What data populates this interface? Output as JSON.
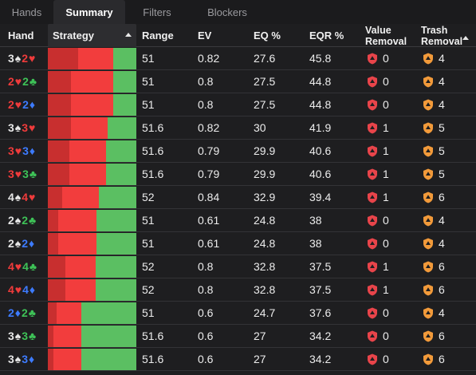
{
  "tabs": [
    {
      "label": "Hands",
      "active": false
    },
    {
      "label": "Summary",
      "active": true
    },
    {
      "label": "Filters",
      "active": false
    },
    {
      "label": "Blockers",
      "active": false
    }
  ],
  "columns": {
    "hand": "Hand",
    "strategy": "Strategy",
    "range": "Range",
    "ev": "EV",
    "eq": "EQ %",
    "eqr": "EQR %",
    "value_removal_line1": "Value",
    "value_removal_line2": "Removal",
    "trash_removal_line1": "Trash",
    "trash_removal_line2": "Removal"
  },
  "colors": {
    "spade": "#e6e6e6",
    "heart": "#ef3b3b",
    "diamond": "#3d7bff",
    "club": "#3ec257",
    "strategy_dark": "#c82f2f",
    "strategy_red": "#f23d3d",
    "strategy_green": "#5bbf62",
    "value_shield": "#e8444a",
    "trash_shield": "#f29a3a"
  },
  "rows": [
    {
      "hand": [
        [
          "3",
          "s"
        ],
        [
          "2",
          "h"
        ]
      ],
      "strategy": [
        0.34,
        0.4,
        0.26
      ],
      "range": "51",
      "ev": "0.82",
      "eq": "27.6",
      "eqr": "45.8",
      "value_removal": "0",
      "trash_removal": "4"
    },
    {
      "hand": [
        [
          "2",
          "h"
        ],
        [
          "2",
          "cl"
        ]
      ],
      "strategy": [
        0.26,
        0.48,
        0.26
      ],
      "range": "51",
      "ev": "0.8",
      "eq": "27.5",
      "eqr": "44.8",
      "value_removal": "0",
      "trash_removal": "4"
    },
    {
      "hand": [
        [
          "2",
          "h"
        ],
        [
          "2",
          "d"
        ]
      ],
      "strategy": [
        0.26,
        0.48,
        0.26
      ],
      "range": "51",
      "ev": "0.8",
      "eq": "27.5",
      "eqr": "44.8",
      "value_removal": "0",
      "trash_removal": "4"
    },
    {
      "hand": [
        [
          "3",
          "s"
        ],
        [
          "3",
          "h"
        ]
      ],
      "strategy": [
        0.26,
        0.42,
        0.32
      ],
      "range": "51.6",
      "ev": "0.82",
      "eq": "30",
      "eqr": "41.9",
      "value_removal": "1",
      "trash_removal": "5"
    },
    {
      "hand": [
        [
          "3",
          "h"
        ],
        [
          "3",
          "d"
        ]
      ],
      "strategy": [
        0.24,
        0.42,
        0.34
      ],
      "range": "51.6",
      "ev": "0.79",
      "eq": "29.9",
      "eqr": "40.6",
      "value_removal": "1",
      "trash_removal": "5"
    },
    {
      "hand": [
        [
          "3",
          "h"
        ],
        [
          "3",
          "cl"
        ]
      ],
      "strategy": [
        0.24,
        0.42,
        0.34
      ],
      "range": "51.6",
      "ev": "0.79",
      "eq": "29.9",
      "eqr": "40.6",
      "value_removal": "1",
      "trash_removal": "5"
    },
    {
      "hand": [
        [
          "4",
          "s"
        ],
        [
          "4",
          "h"
        ]
      ],
      "strategy": [
        0.16,
        0.42,
        0.42
      ],
      "range": "52",
      "ev": "0.84",
      "eq": "32.9",
      "eqr": "39.4",
      "value_removal": "1",
      "trash_removal": "6"
    },
    {
      "hand": [
        [
          "2",
          "s"
        ],
        [
          "2",
          "cl"
        ]
      ],
      "strategy": [
        0.12,
        0.43,
        0.45
      ],
      "range": "51",
      "ev": "0.61",
      "eq": "24.8",
      "eqr": "38",
      "value_removal": "0",
      "trash_removal": "4"
    },
    {
      "hand": [
        [
          "2",
          "s"
        ],
        [
          "2",
          "d"
        ]
      ],
      "strategy": [
        0.12,
        0.43,
        0.45
      ],
      "range": "51",
      "ev": "0.61",
      "eq": "24.8",
      "eqr": "38",
      "value_removal": "0",
      "trash_removal": "4"
    },
    {
      "hand": [
        [
          "4",
          "h"
        ],
        [
          "4",
          "cl"
        ]
      ],
      "strategy": [
        0.2,
        0.34,
        0.46
      ],
      "range": "52",
      "ev": "0.8",
      "eq": "32.8",
      "eqr": "37.5",
      "value_removal": "1",
      "trash_removal": "6"
    },
    {
      "hand": [
        [
          "4",
          "h"
        ],
        [
          "4",
          "d"
        ]
      ],
      "strategy": [
        0.2,
        0.34,
        0.46
      ],
      "range": "52",
      "ev": "0.8",
      "eq": "32.8",
      "eqr": "37.5",
      "value_removal": "1",
      "trash_removal": "6"
    },
    {
      "hand": [
        [
          "2",
          "d"
        ],
        [
          "2",
          "cl"
        ]
      ],
      "strategy": [
        0.1,
        0.28,
        0.62
      ],
      "range": "51",
      "ev": "0.6",
      "eq": "24.7",
      "eqr": "37.6",
      "value_removal": "0",
      "trash_removal": "4"
    },
    {
      "hand": [
        [
          "3",
          "s"
        ],
        [
          "3",
          "cl"
        ]
      ],
      "strategy": [
        0.06,
        0.32,
        0.62
      ],
      "range": "51.6",
      "ev": "0.6",
      "eq": "27",
      "eqr": "34.2",
      "value_removal": "0",
      "trash_removal": "6"
    },
    {
      "hand": [
        [
          "3",
          "s"
        ],
        [
          "3",
          "d"
        ]
      ],
      "strategy": [
        0.06,
        0.32,
        0.62
      ],
      "range": "51.6",
      "ev": "0.6",
      "eq": "27",
      "eqr": "34.2",
      "value_removal": "0",
      "trash_removal": "6"
    }
  ]
}
